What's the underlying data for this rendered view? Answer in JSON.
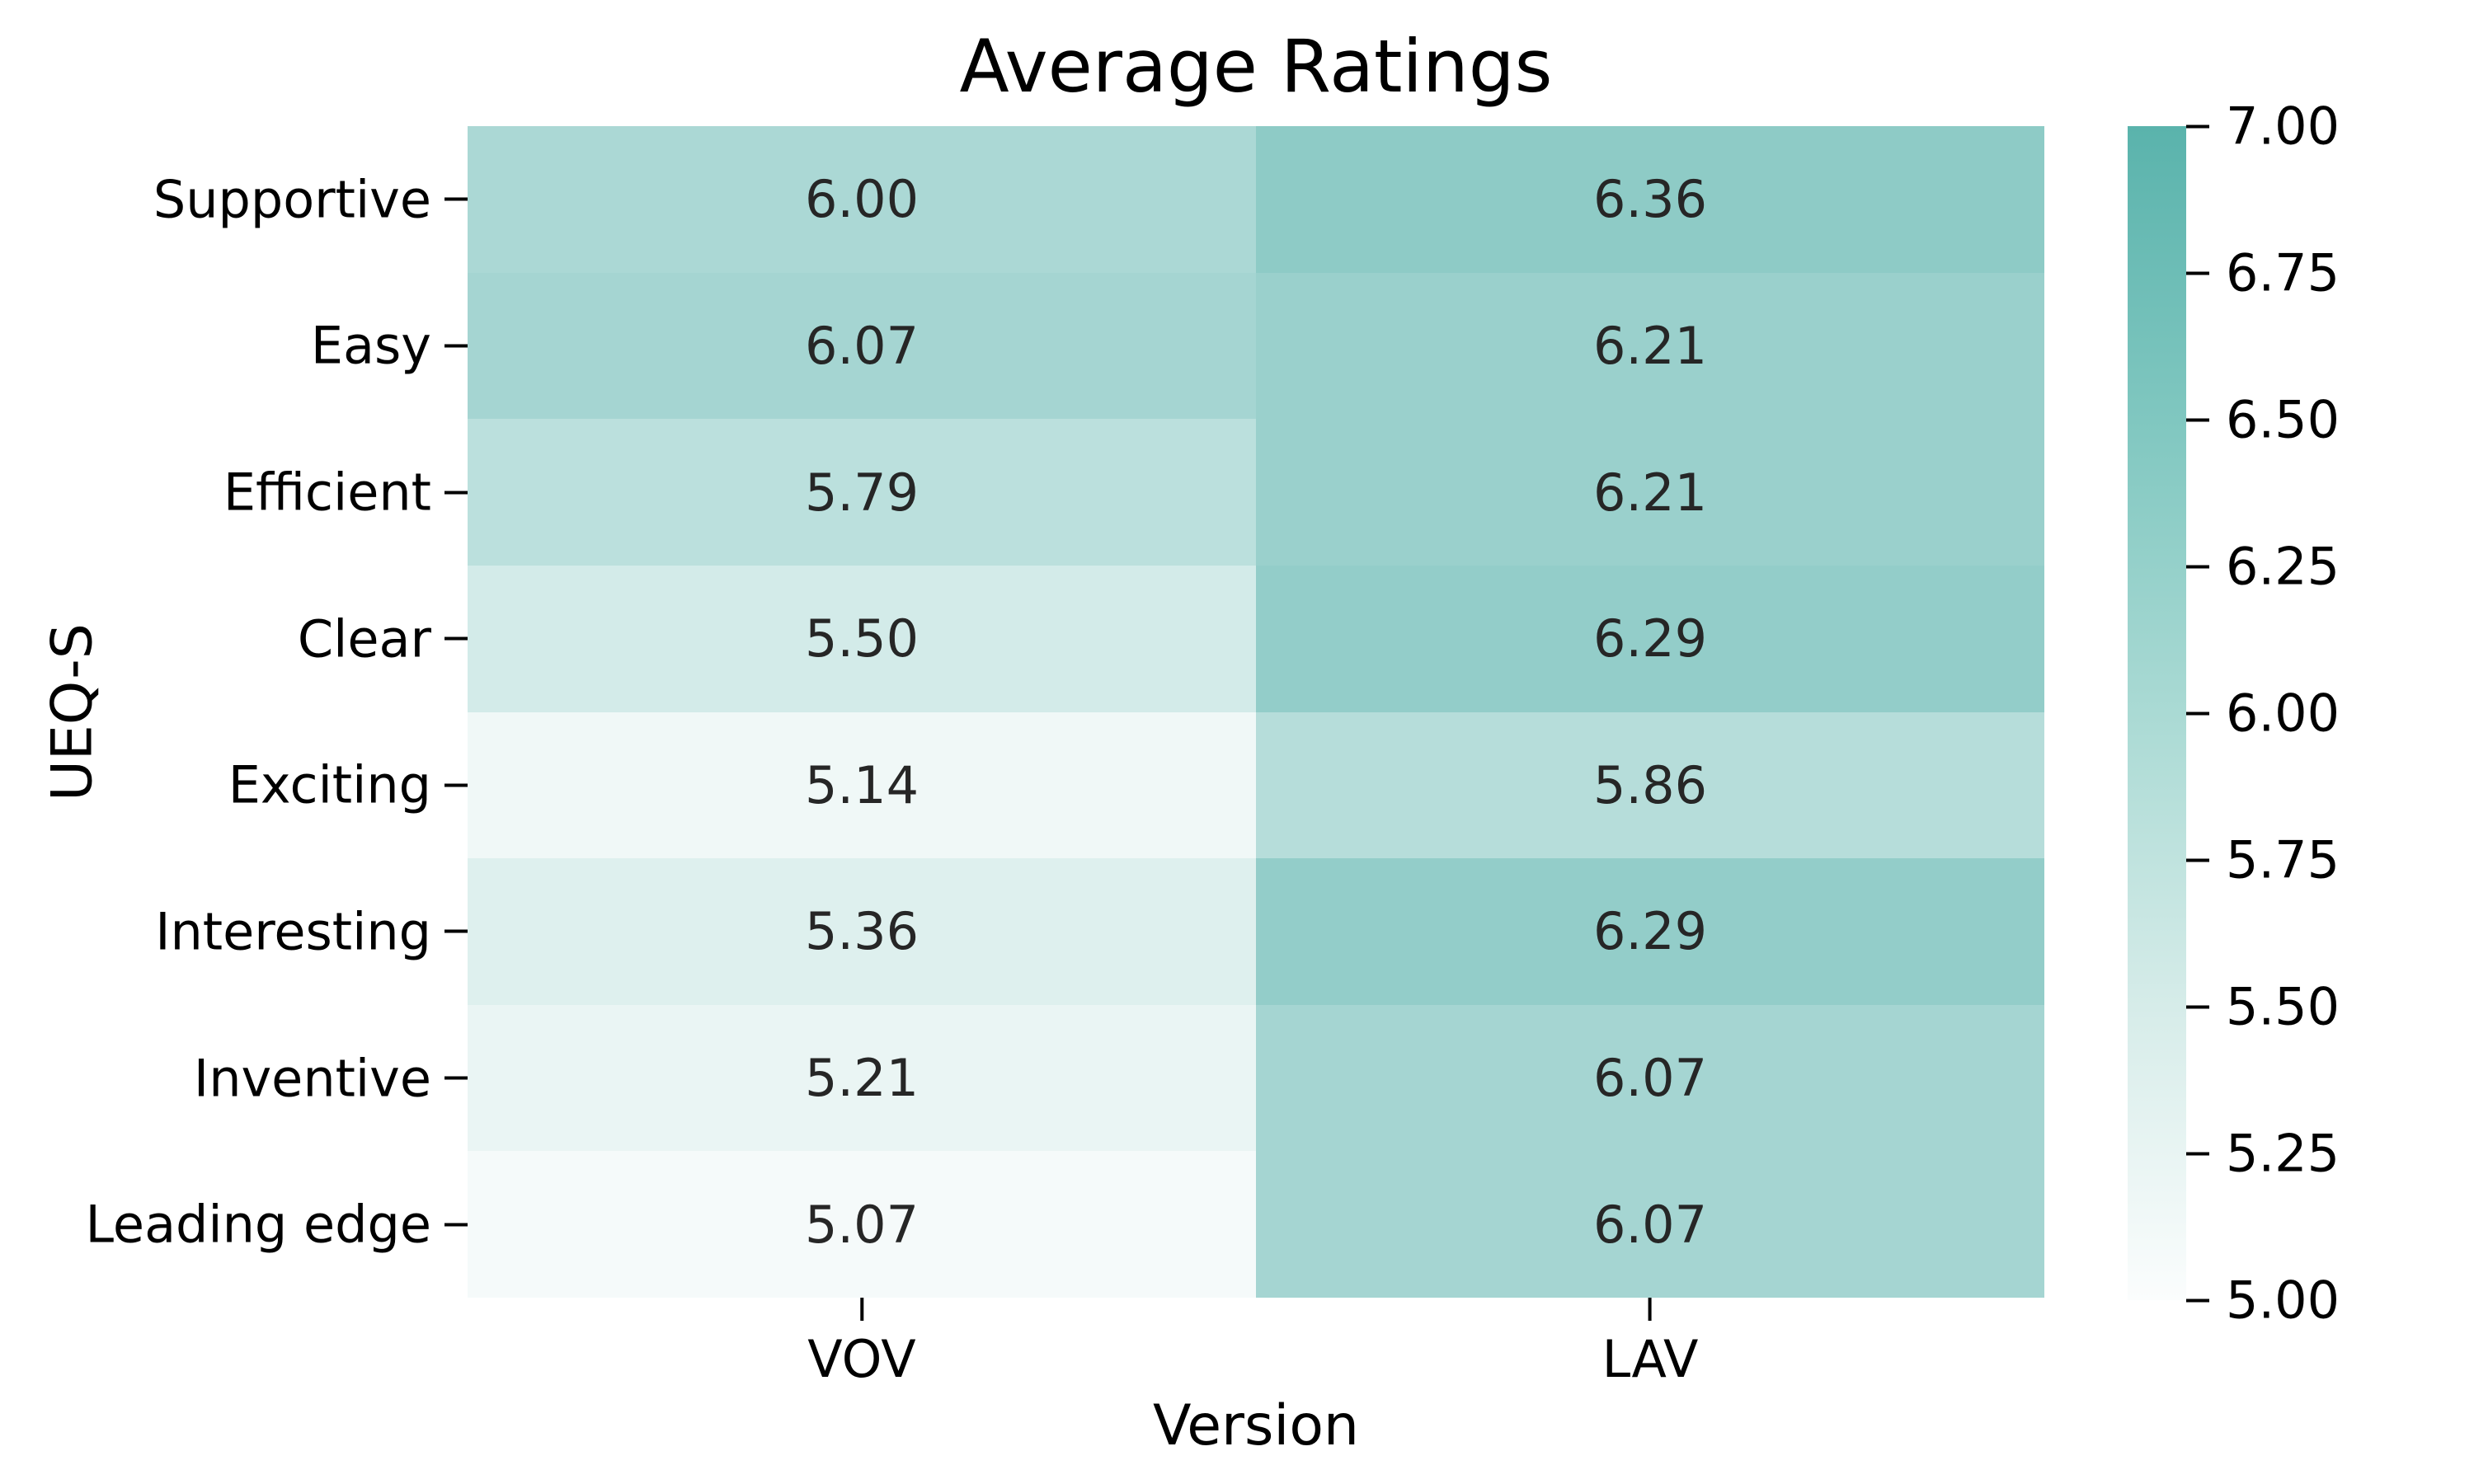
{
  "chart_data": {
    "type": "heatmap",
    "title": "Average Ratings",
    "xlabel": "Version",
    "ylabel": "UEQ-S",
    "x_categories": [
      "VOV",
      "LAV"
    ],
    "y_categories": [
      "Supportive",
      "Easy",
      "Efficient",
      "Clear",
      "Exciting",
      "Interesting",
      "Inventive",
      "Leading edge"
    ],
    "values": [
      [
        6.0,
        6.36
      ],
      [
        6.07,
        6.21
      ],
      [
        5.79,
        6.21
      ],
      [
        5.5,
        6.29
      ],
      [
        5.14,
        5.86
      ],
      [
        5.36,
        6.29
      ],
      [
        5.21,
        6.07
      ],
      [
        5.07,
        6.07
      ]
    ],
    "vmin": 5.0,
    "vmax": 7.0,
    "colorbar_ticks": [
      7.0,
      6.75,
      6.5,
      6.25,
      6.0,
      5.75,
      5.5,
      5.25,
      5.0
    ],
    "colormap": {
      "low": "#fbfdfd",
      "q25": "#d6ece9",
      "mid": "#aadad4",
      "q75": "#80c7c0",
      "high": "#5ab3ac"
    },
    "annotation_text_color": "#262626",
    "axis_text_color": "#000000",
    "grid": false,
    "legend_position": "right-colorbar",
    "annotations": true
  }
}
